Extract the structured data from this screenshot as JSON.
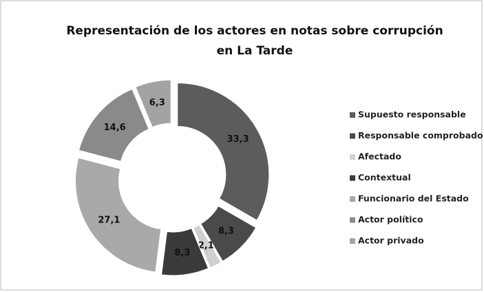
{
  "chart_data": {
    "type": "doughnut",
    "title": [
      "Representación de los actores en notas sobre corrupción",
      "en La Tarde"
    ],
    "categories": [
      "Supuesto responsable",
      "Responsable comprobado",
      "Afectado",
      "Contextual",
      "Funcionario del Estado",
      "Actor político",
      "Actor privado"
    ],
    "values": [
      33.3,
      8.3,
      2.1,
      8.3,
      27.1,
      14.6,
      6.3
    ],
    "value_labels": [
      "33,3",
      "8,3",
      "2,1",
      "8,3",
      "27,1",
      "14,6",
      "6,3"
    ],
    "colors": [
      "#5c5c5c",
      "#4a4a4a",
      "#cfcfcf",
      "#3a3a3a",
      "#a9a9a9",
      "#8a8a8a",
      "#a3a3a3"
    ],
    "legend": "right"
  }
}
